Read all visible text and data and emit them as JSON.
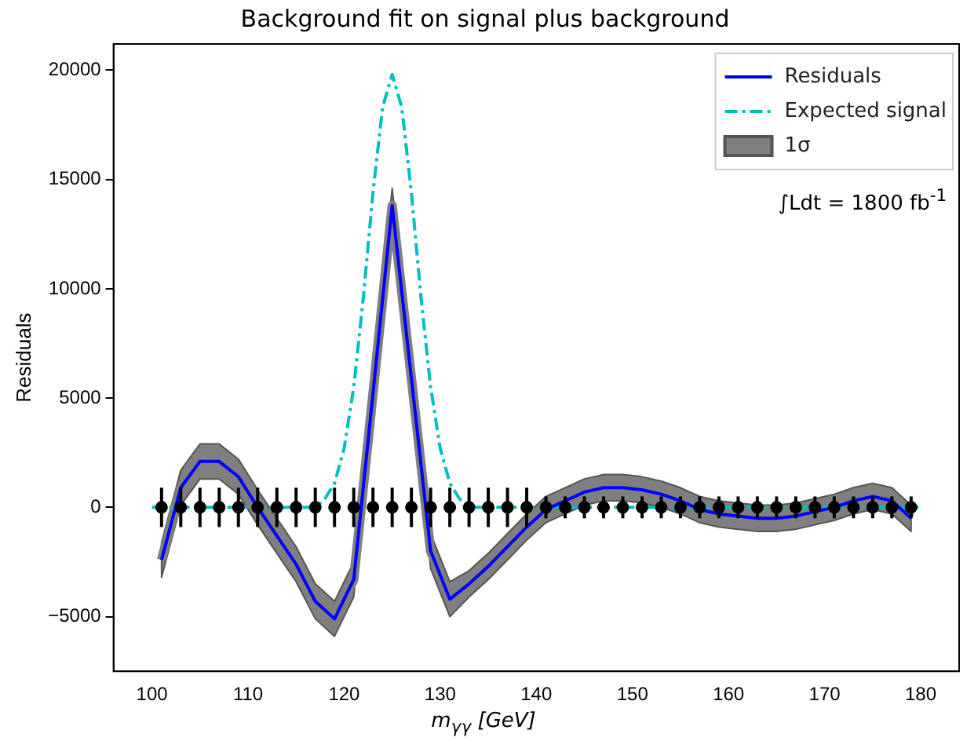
{
  "chart_data": {
    "type": "line",
    "title": "Background fit on signal plus background",
    "xlabel": "m$_{γγ}$ [GeV]",
    "ylabel": "Residuals",
    "annotations": [
      "∫Ldt = 1800 fb$^{-1}$"
    ],
    "xlim": [
      96,
      184
    ],
    "xticks": [
      100,
      110,
      120,
      130,
      140,
      150,
      160,
      170,
      180
    ],
    "ylim": [
      -7500,
      21200
    ],
    "yticks": [
      -5000,
      0,
      5000,
      10000,
      15000,
      20000
    ],
    "grid": false,
    "legend": "top right",
    "series": [
      {
        "name": "Residuals",
        "color": "#0000ff",
        "line_style": "solid",
        "marker": "none",
        "x": [
          101,
          103,
          105,
          107,
          109,
          111,
          113,
          115,
          117,
          119,
          121,
          123,
          125,
          127,
          129,
          131,
          133,
          135,
          137,
          139,
          141,
          143,
          145,
          147,
          149,
          151,
          153,
          155,
          157,
          159,
          161,
          163,
          165,
          167,
          169,
          171,
          173,
          175,
          177,
          179
        ],
        "values": [
          -2400,
          900,
          2100,
          2100,
          1400,
          0,
          -1300,
          -2600,
          -4300,
          -5100,
          -3300,
          5200,
          13800,
          5900,
          -2000,
          -4200,
          -3500,
          -2700,
          -1800,
          -900,
          -100,
          300,
          700,
          900,
          900,
          800,
          600,
          300,
          -100,
          -300,
          -400,
          -500,
          -500,
          -400,
          -200,
          0,
          300,
          500,
          300,
          -500
        ]
      },
      {
        "name": "Expected signal",
        "color": "#00bfbf",
        "line_style": "dashed",
        "marker": "none",
        "x": [
          100,
          117,
          118,
          119,
          120,
          121,
          122,
          123,
          124,
          125,
          126,
          127,
          128,
          129,
          130,
          131,
          132,
          133,
          180
        ],
        "values": [
          0,
          0,
          400,
          1100,
          2700,
          5500,
          9600,
          14400,
          18300,
          19800,
          18300,
          14400,
          9600,
          5500,
          2700,
          1100,
          400,
          0,
          0
        ]
      },
      {
        "name": "1σ",
        "color": "#7f7f7f",
        "marker": "none",
        "line_style": "solid",
        "x": [
          101,
          103,
          105,
          107,
          109,
          111,
          113,
          115,
          117,
          119,
          121,
          123,
          125,
          127,
          129,
          131,
          133,
          135,
          137,
          139,
          141,
          143,
          145,
          147,
          149,
          151,
          153,
          155,
          157,
          159,
          161,
          163,
          165,
          167,
          169,
          171,
          173,
          175,
          177,
          179
        ],
        "values": [
          -2400,
          900,
          2100,
          2100,
          1400,
          0,
          -1300,
          -2600,
          -4300,
          -5100,
          -3300,
          5200,
          13800,
          5900,
          -2000,
          -4200,
          -3500,
          -2700,
          -1800,
          -900,
          -100,
          300,
          700,
          900,
          900,
          800,
          600,
          300,
          -100,
          -300,
          -400,
          -500,
          -500,
          -400,
          -200,
          0,
          300,
          500,
          300,
          -500
        ],
        "lower": [
          -3200,
          100,
          1300,
          1300,
          600,
          -800,
          -2100,
          -3400,
          -5100,
          -5900,
          -4100,
          4400,
          13000,
          5100,
          -2800,
          -5000,
          -4100,
          -3300,
          -2400,
          -1500,
          -700,
          -300,
          100,
          300,
          300,
          200,
          0,
          -300,
          -700,
          -900,
          -1000,
          -1100,
          -1100,
          -1000,
          -800,
          -600,
          -300,
          -100,
          -300,
          -1100
        ],
        "upper": [
          -1600,
          1700,
          2900,
          2900,
          2200,
          800,
          -500,
          -1800,
          -3500,
          -4300,
          -2500,
          6000,
          14600,
          6700,
          -1200,
          -3400,
          -2900,
          -2100,
          -1200,
          -300,
          500,
          900,
          1300,
          1500,
          1500,
          1400,
          1200,
          900,
          500,
          300,
          200,
          100,
          100,
          200,
          400,
          600,
          900,
          1100,
          900,
          100
        ]
      },
      {
        "type": "scatter",
        "color": "#000000",
        "marker": "circle",
        "x": [
          101,
          103,
          105,
          107,
          109,
          111,
          113,
          115,
          117,
          119,
          121,
          123,
          125,
          127,
          129,
          131,
          133,
          135,
          137,
          139,
          141,
          143,
          145,
          147,
          149,
          151,
          153,
          155,
          157,
          159,
          161,
          163,
          165,
          167,
          169,
          171,
          173,
          175,
          177,
          179
        ],
        "values": [
          0,
          0,
          0,
          0,
          0,
          0,
          0,
          0,
          0,
          0,
          0,
          0,
          0,
          0,
          0,
          0,
          0,
          0,
          0,
          0,
          0,
          0,
          0,
          0,
          0,
          0,
          0,
          0,
          0,
          0,
          0,
          0,
          0,
          0,
          0,
          0,
          0,
          0,
          0,
          0
        ],
        "errors": [
          900,
          900,
          900,
          900,
          900,
          900,
          900,
          900,
          900,
          900,
          900,
          900,
          900,
          900,
          900,
          900,
          900,
          900,
          900,
          900,
          500,
          500,
          500,
          500,
          500,
          500,
          500,
          500,
          500,
          500,
          500,
          500,
          500,
          500,
          500,
          500,
          500,
          500,
          500,
          500
        ]
      }
    ]
  }
}
